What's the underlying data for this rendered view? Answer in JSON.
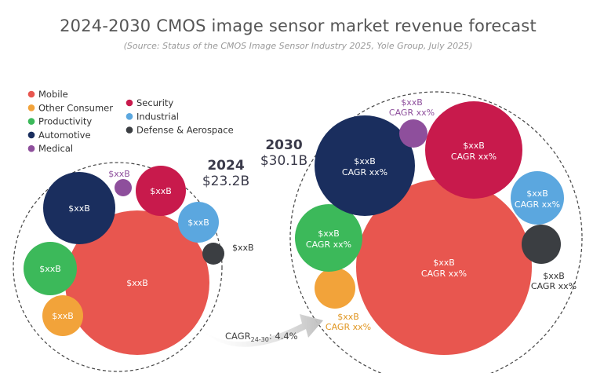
{
  "chart_data": {
    "type": "bubble",
    "title": "2024-2030 CMOS image sensor market revenue forecast",
    "subtitle": "(Source: Status of the CMOS Image Sensor Industry 2025, Yole Group, July 2025)",
    "colors": {
      "Mobile": "#e8564f",
      "Other Consumer": "#f2a33a",
      "Productivity": "#3cb95a",
      "Automotive": "#1a2e5e",
      "Medical": "#8e4f9c",
      "Security": "#c81a4c",
      "Industrial": "#5ba7df",
      "Defense & Aerospace": "#3b3e42"
    },
    "legend": {
      "col1": [
        "Mobile",
        "Other Consumer",
        "Productivity",
        "Automotive",
        "Medical"
      ],
      "col2": [
        "Security",
        "Industrial",
        "Defense & Aerospace"
      ]
    },
    "groups": [
      {
        "year": "2024",
        "total": "$23.2B",
        "segments": [
          {
            "name": "Mobile",
            "label": "$xxB"
          },
          {
            "name": "Other Consumer",
            "label": "$xxB"
          },
          {
            "name": "Productivity",
            "label": "$xxB"
          },
          {
            "name": "Automotive",
            "label": "$xxB"
          },
          {
            "name": "Medical",
            "label": "$xxB"
          },
          {
            "name": "Security",
            "label": "$xxB"
          },
          {
            "name": "Industrial",
            "label": "$xxB"
          },
          {
            "name": "Defense & Aerospace",
            "label": "$xxB"
          }
        ]
      },
      {
        "year": "2030",
        "total": "$30.1B",
        "segments": [
          {
            "name": "Mobile",
            "label": "$xxB",
            "cagr": "CAGR xx%"
          },
          {
            "name": "Other Consumer",
            "label": "$xxB",
            "cagr": "CAGR xx%"
          },
          {
            "name": "Productivity",
            "label": "$xxB",
            "cagr": "CAGR xx%"
          },
          {
            "name": "Automotive",
            "label": "$xxB",
            "cagr": "CAGR xx%"
          },
          {
            "name": "Medical",
            "label": "$xxB",
            "cagr": "CAGR xx%"
          },
          {
            "name": "Security",
            "label": "$xxB",
            "cagr": "CAGR xx%"
          },
          {
            "name": "Industrial",
            "label": "$xxB",
            "cagr": "CAGR xx%"
          },
          {
            "name": "Defense & Aerospace",
            "label": "$xxB",
            "cagr": "CAGR xx%"
          }
        ]
      }
    ],
    "overall_cagr": {
      "prefix": "CAGR",
      "period": "24-30",
      "value": ": 4.4%"
    }
  }
}
